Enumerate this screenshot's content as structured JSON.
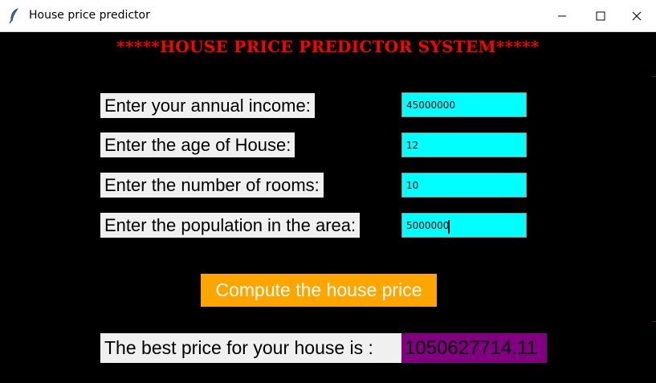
{
  "window": {
    "title": "House price predictor",
    "icon": "feather-icon",
    "controls": [
      "minimize-icon",
      "maximize-icon",
      "close-icon"
    ]
  },
  "heading": "*****HOUSE PRICE PREDICTOR SYSTEM*****",
  "form": {
    "income_label": "Enter your annual income:",
    "income_value": "45000000",
    "age_label": "Enter the age of House:",
    "age_value": "12",
    "rooms_label": "Enter the number of rooms:",
    "rooms_value": "10",
    "population_label": "Enter the population in the area:",
    "population_value": "5000000"
  },
  "compute_button": "Compute the house price",
  "result": {
    "label": "The best price for your house is :",
    "value": "1050627714.11"
  },
  "colors": {
    "background": "#000000",
    "heading": "#ff0000",
    "input_bg": "#00ffff",
    "button_bg": "#ffa500",
    "result_bg": "#800080",
    "label_bg": "#f0f0f0"
  }
}
